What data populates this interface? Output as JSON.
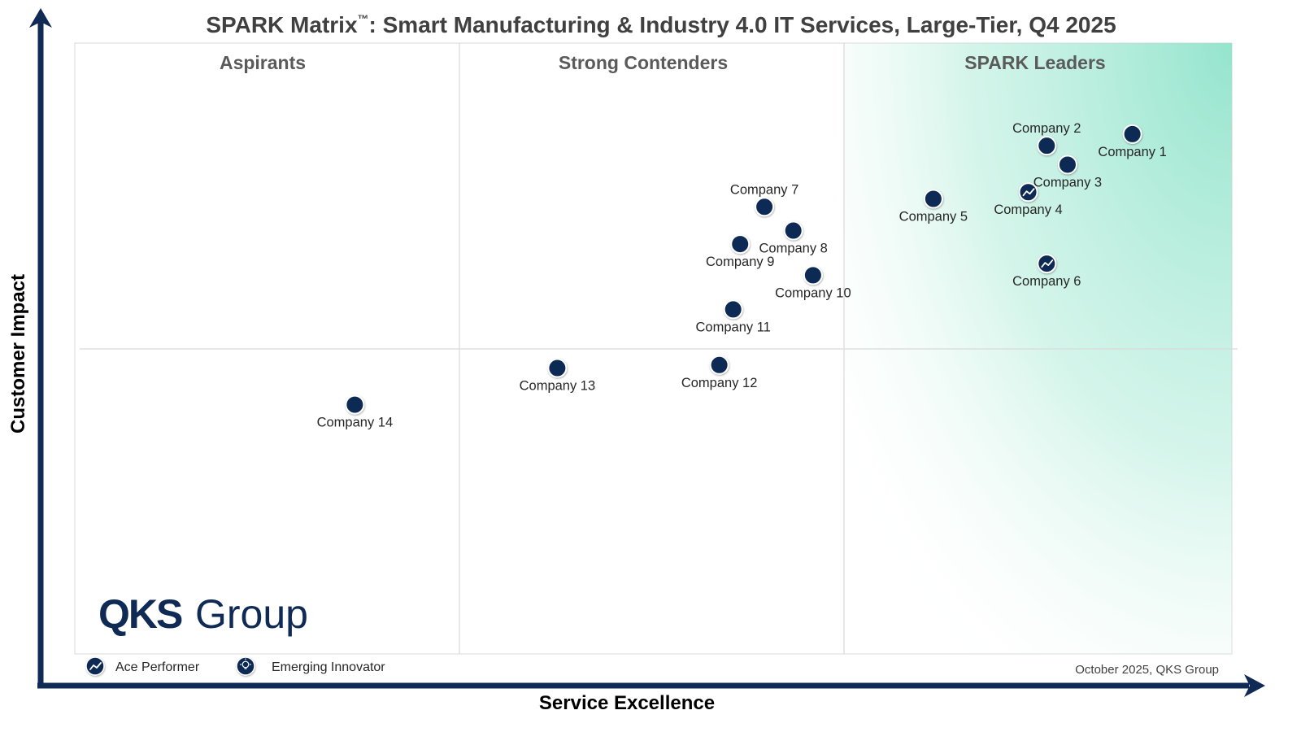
{
  "chart_data": {
    "type": "scatter",
    "title": "SPARK Matrix",
    "title_mark": "™",
    "title_rest": ": Smart Manufacturing & Industry 4.0 IT Services, Large-Tier, Q4 2025",
    "xlabel": "Service Excellence",
    "ylabel": "Customer Impact",
    "regions": [
      "Aspirants",
      "Strong Contenders",
      "SPARK Leaders"
    ],
    "legend": [
      {
        "label": "Ace Performer",
        "icon": "trend-up-icon"
      },
      {
        "label": "Emerging Innovator",
        "icon": "lightbulb-icon"
      }
    ],
    "footer": "October 2025, QKS Group",
    "logo": {
      "bold": "QKS",
      "regular": "Group"
    },
    "xlim": [
      0,
      100
    ],
    "ylim": [
      0,
      100
    ],
    "points": [
      {
        "name": "Company 1",
        "x": 91.4,
        "y": 85.1,
        "marker": "plain",
        "label_pos": "below"
      },
      {
        "name": "Company 2",
        "x": 84.0,
        "y": 83.2,
        "marker": "plain",
        "label_pos": "above"
      },
      {
        "name": "Company 3",
        "x": 85.8,
        "y": 80.1,
        "marker": "plain",
        "label_pos": "below"
      },
      {
        "name": "Company 4",
        "x": 82.4,
        "y": 75.6,
        "marker": "ace",
        "label_pos": "below"
      },
      {
        "name": "Company 5",
        "x": 74.2,
        "y": 74.5,
        "marker": "plain",
        "label_pos": "below"
      },
      {
        "name": "Company 6",
        "x": 84.0,
        "y": 63.9,
        "marker": "ace",
        "label_pos": "below"
      },
      {
        "name": "Company 7",
        "x": 59.6,
        "y": 73.2,
        "marker": "plain",
        "label_pos": "above"
      },
      {
        "name": "Company 8",
        "x": 62.1,
        "y": 69.3,
        "marker": "plain",
        "label_pos": "below"
      },
      {
        "name": "Company 9",
        "x": 57.5,
        "y": 67.1,
        "marker": "plain",
        "label_pos": "below"
      },
      {
        "name": "Company 10",
        "x": 63.8,
        "y": 62.0,
        "marker": "plain",
        "label_pos": "below"
      },
      {
        "name": "Company 11",
        "x": 56.9,
        "y": 56.4,
        "marker": "plain",
        "label_pos": "below"
      },
      {
        "name": "Company 12",
        "x": 55.7,
        "y": 47.3,
        "marker": "plain",
        "label_pos": "below"
      },
      {
        "name": "Company 13",
        "x": 41.7,
        "y": 46.8,
        "marker": "plain",
        "label_pos": "below"
      },
      {
        "name": "Company 14",
        "x": 24.2,
        "y": 40.8,
        "marker": "plain",
        "label_pos": "below"
      }
    ],
    "colors": {
      "marker": "#0f2a55",
      "axis": "#0f2a55",
      "leader_gradient": "#8fe3cb"
    }
  }
}
